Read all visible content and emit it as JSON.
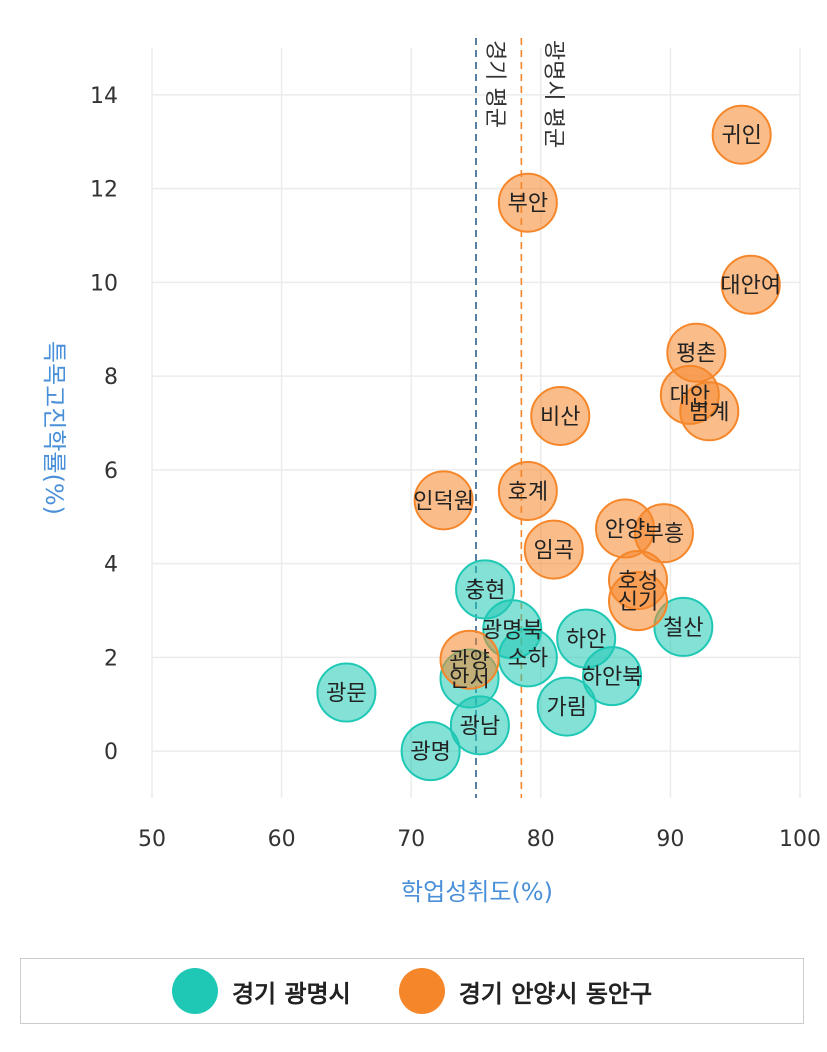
{
  "chart_data": {
    "type": "scatter",
    "xlabel": "학업성취도(%)",
    "ylabel": "특목고진학률(%)",
    "xlim": [
      50,
      100
    ],
    "ylim": [
      -1,
      15
    ],
    "xticks": [
      50,
      60,
      70,
      80,
      90,
      100
    ],
    "yticks": [
      0,
      2,
      4,
      6,
      8,
      10,
      12,
      14
    ],
    "grid": true,
    "legend_position": "bottom",
    "reference_lines": [
      {
        "label": "경기 평균",
        "x": 75.0,
        "color": "#2f5f8a"
      },
      {
        "label": "광명시 평균",
        "x": 78.5,
        "color": "#f5862a"
      }
    ],
    "series": [
      {
        "name": "경기 광명시",
        "color": "#1fc8b5",
        "points": [
          {
            "label": "광문",
            "x": 65.0,
            "y": 1.25
          },
          {
            "label": "광명",
            "x": 71.5,
            "y": 0.0
          },
          {
            "label": "광남",
            "x": 75.3,
            "y": 0.55
          },
          {
            "label": "안서",
            "x": 74.5,
            "y": 1.55
          },
          {
            "label": "충현",
            "x": 75.7,
            "y": 3.45
          },
          {
            "label": "광명북",
            "x": 77.8,
            "y": 2.6
          },
          {
            "label": "소하",
            "x": 79.0,
            "y": 2.0
          },
          {
            "label": "하안",
            "x": 83.5,
            "y": 2.4
          },
          {
            "label": "하안북",
            "x": 85.5,
            "y": 1.6
          },
          {
            "label": "가림",
            "x": 82.0,
            "y": 0.95
          },
          {
            "label": "철산",
            "x": 91.0,
            "y": 2.65
          }
        ]
      },
      {
        "name": "경기 안양시 동안구",
        "color": "#f5862a",
        "points": [
          {
            "label": "귀인",
            "x": 95.5,
            "y": 13.15
          },
          {
            "label": "부안",
            "x": 79.0,
            "y": 11.7
          },
          {
            "label": "대안여",
            "x": 96.2,
            "y": 9.95
          },
          {
            "label": "평촌",
            "x": 92.0,
            "y": 8.5
          },
          {
            "label": "대안",
            "x": 91.5,
            "y": 7.6
          },
          {
            "label": "범계",
            "x": 93.0,
            "y": 7.25
          },
          {
            "label": "비산",
            "x": 81.5,
            "y": 7.15
          },
          {
            "label": "호계",
            "x": 79.0,
            "y": 5.55
          },
          {
            "label": "인덕원",
            "x": 72.5,
            "y": 5.35
          },
          {
            "label": "임곡",
            "x": 81.0,
            "y": 4.3
          },
          {
            "label": "안양",
            "x": 86.5,
            "y": 4.75
          },
          {
            "label": "부흥",
            "x": 89.5,
            "y": 4.65
          },
          {
            "label": "호성",
            "x": 87.5,
            "y": 3.65
          },
          {
            "label": "신기",
            "x": 87.5,
            "y": 3.2
          },
          {
            "label": "관양",
            "x": 74.5,
            "y": 1.95
          }
        ]
      }
    ]
  }
}
